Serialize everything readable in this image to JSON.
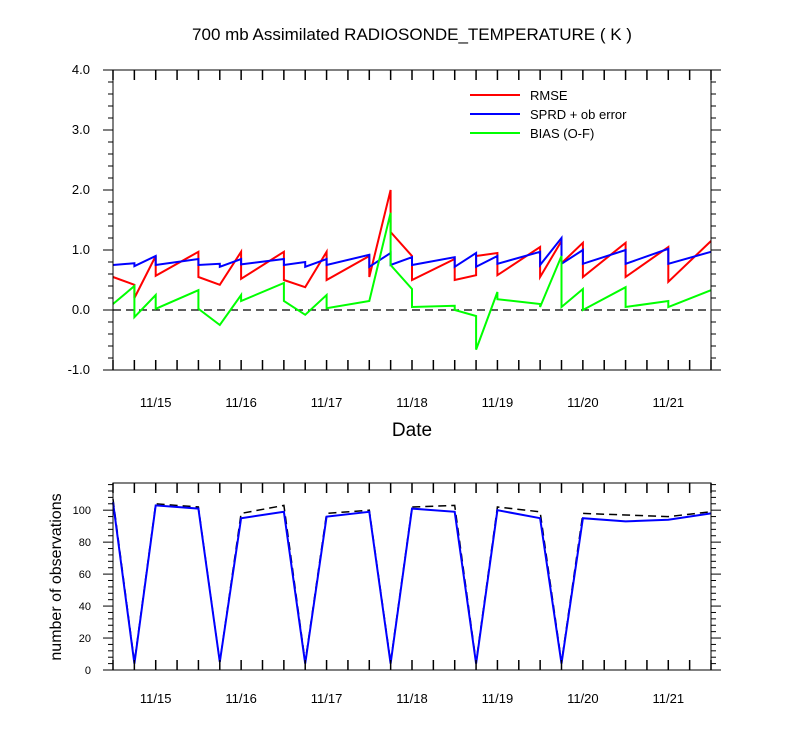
{
  "chart_data": [
    {
      "type": "line",
      "title": "700 mb Assimilated RADIOSONDE_TEMPERATURE ( K )",
      "xlabel": "Date",
      "ylabel": "",
      "xlim": [
        14.5,
        21.5
      ],
      "ylim": [
        -1.0,
        4.0
      ],
      "x_tick_labels": [
        {
          "x": 15,
          "label": "11/15"
        },
        {
          "x": 16,
          "label": "11/16"
        },
        {
          "x": 17,
          "label": "11/17"
        },
        {
          "x": 18,
          "label": "11/18"
        },
        {
          "x": 19,
          "label": "11/19"
        },
        {
          "x": 20,
          "label": "11/20"
        },
        {
          "x": 21,
          "label": "11/21"
        }
      ],
      "y_tick_labels": [
        {
          "y": -1.0,
          "label": "-1.0"
        },
        {
          "y": 0.0,
          "label": "0.0"
        },
        {
          "y": 1.0,
          "label": "1.0"
        },
        {
          "y": 2.0,
          "label": "2.0"
        },
        {
          "y": 3.0,
          "label": "3.0"
        },
        {
          "y": 4.0,
          "label": "4.0"
        }
      ],
      "reference_line": {
        "y": 0.0,
        "style": "dashed"
      },
      "legend_position": "top-right",
      "series": [
        {
          "name": "RMSE",
          "color": "#ff0000",
          "points": [
            [
              14.5,
              0.55
            ],
            [
              14.75,
              0.42
            ],
            [
              14.75,
              0.2
            ],
            [
              15,
              0.9
            ],
            [
              15,
              0.57
            ],
            [
              15.5,
              0.97
            ],
            [
              15.5,
              0.55
            ],
            [
              15.75,
              0.42
            ],
            [
              16,
              0.97
            ],
            [
              16,
              0.52
            ],
            [
              16.5,
              0.97
            ],
            [
              16.5,
              0.5
            ],
            [
              16.75,
              0.38
            ],
            [
              17,
              0.97
            ],
            [
              17,
              0.5
            ],
            [
              17.5,
              0.9
            ],
            [
              17.5,
              0.55
            ],
            [
              17.75,
              2.0
            ],
            [
              17.75,
              1.3
            ],
            [
              18,
              0.9
            ],
            [
              18,
              0.5
            ],
            [
              18.5,
              0.85
            ],
            [
              18.5,
              0.5
            ],
            [
              18.75,
              0.58
            ],
            [
              18.75,
              0.9
            ],
            [
              19,
              0.95
            ],
            [
              19,
              0.58
            ],
            [
              19.5,
              1.05
            ],
            [
              19.5,
              0.55
            ],
            [
              19.75,
              1.15
            ],
            [
              19.75,
              0.78
            ],
            [
              20,
              1.12
            ],
            [
              20,
              0.55
            ],
            [
              20.5,
              1.12
            ],
            [
              20.5,
              0.55
            ],
            [
              21,
              1.05
            ],
            [
              21,
              0.47
            ],
            [
              21.5,
              1.15
            ]
          ]
        },
        {
          "name": "SPRD + ob error",
          "color": "#0000ff",
          "points": [
            [
              14.5,
              0.75
            ],
            [
              14.75,
              0.78
            ],
            [
              14.75,
              0.73
            ],
            [
              15,
              0.9
            ],
            [
              15,
              0.75
            ],
            [
              15.5,
              0.85
            ],
            [
              15.5,
              0.75
            ],
            [
              15.75,
              0.77
            ],
            [
              15.75,
              0.72
            ],
            [
              16,
              0.85
            ],
            [
              16,
              0.76
            ],
            [
              16.5,
              0.85
            ],
            [
              16.5,
              0.75
            ],
            [
              16.75,
              0.8
            ],
            [
              16.75,
              0.72
            ],
            [
              17,
              0.85
            ],
            [
              17,
              0.75
            ],
            [
              17.5,
              0.92
            ],
            [
              17.5,
              0.72
            ],
            [
              17.75,
              0.95
            ],
            [
              17.75,
              0.75
            ],
            [
              18,
              0.88
            ],
            [
              18,
              0.75
            ],
            [
              18.5,
              0.88
            ],
            [
              18.5,
              0.72
            ],
            [
              18.75,
              0.95
            ],
            [
              18.75,
              0.72
            ],
            [
              19,
              0.9
            ],
            [
              19,
              0.77
            ],
            [
              19.5,
              0.97
            ],
            [
              19.5,
              0.75
            ],
            [
              19.75,
              1.2
            ],
            [
              19.75,
              0.77
            ],
            [
              20,
              1.0
            ],
            [
              20,
              0.77
            ],
            [
              20.5,
              1.0
            ],
            [
              20.5,
              0.77
            ],
            [
              21,
              1.02
            ],
            [
              21,
              0.77
            ],
            [
              21.5,
              0.97
            ]
          ]
        },
        {
          "name": "BIAS (O-F)",
          "color": "#00ff00",
          "points": [
            [
              14.5,
              0.1
            ],
            [
              14.75,
              0.4
            ],
            [
              14.75,
              -0.12
            ],
            [
              15,
              0.25
            ],
            [
              15,
              0.02
            ],
            [
              15.5,
              0.33
            ],
            [
              15.5,
              0.02
            ],
            [
              15.75,
              -0.25
            ],
            [
              16,
              0.25
            ],
            [
              16,
              0.15
            ],
            [
              16.5,
              0.45
            ],
            [
              16.5,
              0.15
            ],
            [
              16.75,
              -0.08
            ],
            [
              17,
              0.25
            ],
            [
              17,
              0.03
            ],
            [
              17.5,
              0.15
            ],
            [
              17.5,
              0.15
            ],
            [
              17.75,
              1.62
            ],
            [
              17.75,
              0.75
            ],
            [
              18,
              0.35
            ],
            [
              18,
              0.05
            ],
            [
              18.5,
              0.07
            ],
            [
              18.5,
              0.0
            ],
            [
              18.75,
              -0.1
            ],
            [
              18.75,
              -0.66
            ],
            [
              19,
              0.3
            ],
            [
              19,
              0.18
            ],
            [
              19.5,
              0.1
            ],
            [
              19.5,
              0.05
            ],
            [
              19.75,
              0.9
            ],
            [
              19.75,
              0.05
            ],
            [
              20,
              0.35
            ],
            [
              20,
              0.0
            ],
            [
              20.5,
              0.38
            ],
            [
              20.5,
              0.05
            ],
            [
              21,
              0.15
            ],
            [
              21,
              0.05
            ],
            [
              21.5,
              0.33
            ]
          ]
        }
      ]
    },
    {
      "type": "line",
      "title": "",
      "xlabel": "",
      "ylabel": "number of observations",
      "xlim": [
        14.5,
        21.5
      ],
      "ylim": [
        0,
        117
      ],
      "x_tick_labels": [
        {
          "x": 15,
          "label": "11/15"
        },
        {
          "x": 16,
          "label": "11/16"
        },
        {
          "x": 17,
          "label": "11/17"
        },
        {
          "x": 18,
          "label": "11/18"
        },
        {
          "x": 19,
          "label": "11/19"
        },
        {
          "x": 20,
          "label": "11/20"
        },
        {
          "x": 21,
          "label": "11/21"
        }
      ],
      "y_tick_labels": [
        {
          "y": 0,
          "label": "0"
        },
        {
          "y": 20,
          "label": "20"
        },
        {
          "y": 40,
          "label": "40"
        },
        {
          "y": 60,
          "label": "60"
        },
        {
          "y": 80,
          "label": "80"
        },
        {
          "y": 100,
          "label": "100"
        }
      ],
      "series": [
        {
          "name": "",
          "color": "#000000",
          "style": "dashed",
          "points": [
            [
              14.5,
              107
            ],
            [
              14.75,
              5
            ],
            [
              15,
              104
            ],
            [
              15.5,
              102
            ],
            [
              15.75,
              5
            ],
            [
              16,
              98
            ],
            [
              16.5,
              103
            ],
            [
              16.75,
              5
            ],
            [
              17,
              98
            ],
            [
              17.5,
              100
            ],
            [
              17.75,
              5
            ],
            [
              18,
              102
            ],
            [
              18.5,
              103
            ],
            [
              18.75,
              5
            ],
            [
              19,
              102
            ],
            [
              19.5,
              99
            ],
            [
              19.75,
              5
            ],
            [
              20,
              98
            ],
            [
              20.5,
              97
            ],
            [
              21,
              96
            ],
            [
              21.5,
              99
            ]
          ]
        },
        {
          "name": "",
          "color": "#0000ff",
          "style": "solid",
          "points": [
            [
              14.5,
              105
            ],
            [
              14.75,
              4
            ],
            [
              15,
              103
            ],
            [
              15.5,
              101
            ],
            [
              15.75,
              5
            ],
            [
              16,
              95
            ],
            [
              16.5,
              99
            ],
            [
              16.75,
              4
            ],
            [
              17,
              96
            ],
            [
              17.5,
              99
            ],
            [
              17.75,
              4
            ],
            [
              18,
              101
            ],
            [
              18.5,
              99
            ],
            [
              18.75,
              4
            ],
            [
              19,
              100
            ],
            [
              19.5,
              95
            ],
            [
              19.75,
              4
            ],
            [
              20,
              95
            ],
            [
              20.5,
              93
            ],
            [
              21,
              94
            ],
            [
              21.5,
              98
            ]
          ]
        }
      ]
    }
  ]
}
